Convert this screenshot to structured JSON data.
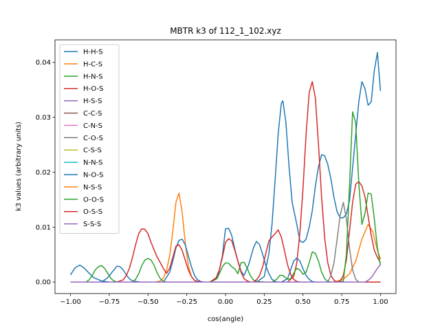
{
  "chart_data": {
    "type": "line",
    "title": "MBTR k3 of 112_1_102.xyz",
    "xlabel": "cos(angle)",
    "ylabel": "k3 values (arbitrary units)",
    "xlim": [
      -1.1,
      1.1
    ],
    "ylim": [
      -0.0021,
      0.0441
    ],
    "xticks": [
      -1.0,
      -0.75,
      -0.5,
      -0.25,
      0.0,
      0.25,
      0.5,
      0.75,
      1.0
    ],
    "xtick_labels": [
      "−1.00",
      "−0.75",
      "−0.50",
      "−0.25",
      "0.00",
      "0.25",
      "0.50",
      "0.75",
      "1.00"
    ],
    "yticks": [
      0.0,
      0.01,
      0.02,
      0.03,
      0.04
    ],
    "ytick_labels": [
      "0.00",
      "0.01",
      "0.02",
      "0.03",
      "0.04"
    ],
    "grid": false,
    "legend_position": "upper-left",
    "series": [
      {
        "name": "H-H-S",
        "color": "#1f77b4",
        "x": [
          -1.0,
          -0.97,
          -0.94,
          -0.91,
          -0.88,
          -0.85,
          -0.8,
          -0.75,
          -0.7,
          -0.65,
          -0.6,
          -0.55,
          -0.5,
          -0.45,
          -0.4,
          -0.35,
          -0.32,
          -0.3,
          -0.28,
          -0.26,
          -0.24,
          -0.22,
          -0.2,
          -0.18,
          -0.15,
          -0.1,
          -0.05,
          -0.02,
          0.0,
          0.02,
          0.04,
          0.06,
          0.08,
          0.1,
          0.12,
          0.15,
          0.18,
          0.2,
          0.25,
          0.28,
          0.3,
          0.32,
          0.34,
          0.36,
          0.37,
          0.39,
          0.41,
          0.43,
          0.46,
          0.48,
          0.5,
          0.52,
          0.54,
          0.56,
          0.58,
          0.6,
          0.62,
          0.64,
          0.66,
          0.68,
          0.7,
          0.72,
          0.74,
          0.76,
          0.78,
          0.8,
          0.82,
          0.84,
          0.86,
          0.88,
          0.9,
          0.92,
          0.94,
          0.96,
          0.98,
          1.0
        ],
        "y": [
          0.0013,
          0.0026,
          0.0031,
          0.0025,
          0.0016,
          0.0008,
          0.0002,
          0.0,
          0.0,
          0.0,
          0.0,
          0.0,
          0.0,
          0.0,
          0.0,
          0.0,
          0.0,
          0.0,
          0.0,
          0.0,
          0.0,
          0.0,
          0.0,
          0.0,
          0.0,
          0.0,
          0.0,
          0.0,
          0.0,
          0.0,
          0.0,
          0.0,
          0.0,
          0.0,
          0.0,
          0.0,
          0.0,
          0.0,
          0.001,
          0.0052,
          0.0105,
          0.0185,
          0.027,
          0.0325,
          0.033,
          0.029,
          0.021,
          0.0145,
          0.0105,
          0.0075,
          0.0072,
          0.0078,
          0.01,
          0.013,
          0.0175,
          0.021,
          0.0232,
          0.023,
          0.0214,
          0.0188,
          0.0154,
          0.0128,
          0.0117,
          0.0117,
          0.0124,
          0.0148,
          0.0208,
          0.0268,
          0.0328,
          0.0365,
          0.0352,
          0.0322,
          0.0328,
          0.0385,
          0.0418,
          0.0348
        ]
      },
      {
        "name": "H-C-S",
        "color": "#ff7f0e",
        "x": [
          -1.0,
          -0.45,
          -0.42,
          -0.4,
          -0.38,
          -0.36,
          -0.34,
          -0.32,
          -0.3,
          -0.28,
          -0.26,
          -0.24,
          -0.22,
          -0.2,
          -0.18,
          -0.15,
          0.6,
          0.7,
          0.76,
          0.8,
          0.84,
          0.88,
          0.92,
          0.95,
          0.98,
          1.0
        ],
        "y": [
          0.0,
          0.0,
          0.0002,
          0.0008,
          0.0022,
          0.0048,
          0.0092,
          0.0145,
          0.0162,
          0.0128,
          0.0072,
          0.003,
          0.001,
          0.0003,
          0.0,
          0.0,
          0.0,
          0.0,
          0.0005,
          0.0015,
          0.0038,
          0.0078,
          0.0105,
          0.0092,
          0.0058,
          0.0042
        ]
      },
      {
        "name": "H-N-S",
        "color": "#2ca02c",
        "x": [
          -1.0,
          -0.9,
          -0.88,
          -0.86,
          -0.84,
          -0.82,
          -0.8,
          -0.78,
          -0.76,
          -0.74,
          -0.72,
          -0.7,
          -0.65,
          -0.62,
          -0.6,
          -0.58,
          -0.56,
          -0.54,
          -0.52,
          -0.5,
          -0.48,
          -0.46,
          -0.44,
          -0.42,
          -0.4,
          -0.38,
          -0.35,
          -0.1,
          -0.08,
          -0.06,
          -0.04,
          -0.02,
          0.0,
          0.02,
          0.04,
          0.06,
          0.08,
          0.1,
          0.12,
          0.15,
          0.2,
          0.25,
          0.3,
          0.33,
          0.35,
          0.37,
          0.4,
          0.43,
          0.46,
          0.48,
          0.5,
          0.52,
          0.54,
          0.56,
          0.58,
          0.6,
          0.62,
          0.64,
          0.66,
          0.68,
          0.7,
          0.72,
          0.74,
          0.76,
          0.78,
          0.8,
          0.82,
          0.84,
          0.86,
          0.88,
          0.9,
          0.92,
          0.94,
          0.96,
          0.98,
          1.0
        ],
        "y": [
          0.0,
          0.0,
          0.0004,
          0.0012,
          0.0022,
          0.0028,
          0.003,
          0.0025,
          0.0016,
          0.0007,
          0.0002,
          0.0,
          0.0,
          0.0,
          0.0,
          0.0,
          0.0,
          0.0,
          0.0,
          0.0,
          0.0,
          0.0,
          0.0,
          0.0,
          0.0,
          0.0,
          0.0,
          0.0,
          0.0,
          0.0,
          0.0,
          0.0,
          0.0,
          0.0,
          0.0,
          0.0,
          0.0,
          0.0,
          0.0,
          0.0,
          0.0,
          0.0,
          0.0,
          0.0,
          0.0,
          0.0,
          0.0,
          0.0,
          0.0,
          0.0,
          0.0,
          0.0,
          0.0,
          0.0,
          0.0,
          0.0,
          0.0,
          0.0,
          0.0,
          0.0,
          0.0,
          0.0,
          0.0,
          0.0,
          0.0,
          0.0,
          0.0,
          0.0,
          0.0,
          0.0,
          0.0,
          0.0,
          0.0,
          0.0,
          0.0,
          0.0
        ]
      },
      {
        "name": "H-O-S",
        "color": "#d62728",
        "x": [
          -1.0,
          0.4,
          0.44,
          0.46,
          0.48,
          0.5,
          0.52,
          0.54,
          0.56,
          0.58,
          0.6,
          0.62,
          0.64,
          0.66,
          0.68,
          0.7,
          0.72,
          0.74,
          0.76,
          0.78,
          0.8,
          0.82,
          0.84,
          0.86,
          0.88,
          0.9,
          0.92,
          0.94,
          0.96,
          0.98,
          1.0
        ],
        "y": [
          0.0,
          0.0,
          0.001,
          0.0035,
          0.009,
          0.017,
          0.027,
          0.0345,
          0.0365,
          0.0335,
          0.025,
          0.0155,
          0.008,
          0.0035,
          0.0012,
          0.0003,
          0.0,
          0.0002,
          0.0012,
          0.004,
          0.0092,
          0.0145,
          0.0178,
          0.0183,
          0.0175,
          0.0155,
          0.012,
          0.0085,
          0.0058,
          0.0045,
          0.0035
        ]
      },
      {
        "name": "H-S-S",
        "color": "#9467bd",
        "x": [
          -1.0,
          1.0
        ],
        "y": [
          0.0,
          0.0
        ]
      },
      {
        "name": "C-C-S",
        "color": "#8c564b",
        "x": [
          -1.0,
          1.0
        ],
        "y": [
          0.0,
          0.0
        ]
      },
      {
        "name": "C-N-S",
        "color": "#e377c2",
        "x": [
          -1.0,
          1.0
        ],
        "y": [
          0.0,
          0.0
        ]
      },
      {
        "name": "C-O-S",
        "color": "#7f7f7f",
        "x": [
          -1.0,
          0.66,
          0.68,
          0.7,
          0.72,
          0.74,
          0.76,
          0.78,
          0.8,
          0.82,
          0.84,
          0.86,
          1.0
        ],
        "y": [
          0.0,
          0.0,
          0.0012,
          0.0035,
          0.0078,
          0.0122,
          0.0145,
          0.0115,
          0.0062,
          0.0022,
          0.0005,
          0.0,
          0.0
        ]
      },
      {
        "name": "C-S-S",
        "color": "#bcbd22",
        "x": [
          -1.0,
          1.0
        ],
        "y": [
          0.0,
          0.0
        ]
      },
      {
        "name": "N-N-S",
        "color": "#17becf",
        "x": [
          -1.0,
          1.0
        ],
        "y": [
          0.0,
          0.0
        ]
      },
      {
        "name": "N-O-S",
        "color": "#1f77b4",
        "x": [
          -1.0,
          -0.8,
          -0.76,
          -0.72,
          -0.7,
          -0.68,
          -0.66,
          -0.64,
          -0.62,
          -0.6,
          -0.55,
          -0.4,
          -0.36,
          -0.34,
          -0.32,
          -0.3,
          -0.28,
          -0.26,
          -0.24,
          -0.22,
          -0.2,
          -0.18,
          -0.16,
          -0.14,
          -0.1,
          -0.05,
          -0.02,
          0.0,
          0.02,
          0.04,
          0.06,
          0.08,
          0.1,
          0.12,
          0.15,
          0.18,
          0.2,
          0.22,
          0.24,
          0.26,
          0.28,
          0.3,
          0.32,
          0.34,
          0.36,
          0.4,
          0.42,
          0.44,
          0.46,
          0.48,
          0.5,
          0.52,
          0.54,
          0.56,
          0.58,
          0.6,
          1.0
        ],
        "y": [
          0.0,
          0.0,
          0.0008,
          0.0022,
          0.0029,
          0.0028,
          0.0022,
          0.0013,
          0.0006,
          0.0002,
          0.0,
          0.0,
          0.0018,
          0.0038,
          0.0062,
          0.0076,
          0.0078,
          0.0068,
          0.0048,
          0.0028,
          0.0012,
          0.0004,
          0.0001,
          0.0,
          0.0,
          0.0008,
          0.0048,
          0.0097,
          0.0098,
          0.0085,
          0.006,
          0.0038,
          0.002,
          0.0012,
          0.0032,
          0.0062,
          0.0074,
          0.0068,
          0.005,
          0.003,
          0.0015,
          0.0005,
          0.0001,
          0.0,
          0.0,
          0.0006,
          0.0022,
          0.0038,
          0.0044,
          0.0038,
          0.0024,
          0.0012,
          0.0005,
          0.0001,
          0.0,
          0.0,
          0.0
        ]
      },
      {
        "name": "N-S-S",
        "color": "#ff7f0e",
        "x": [
          -1.0,
          1.0
        ],
        "y": [
          0.0,
          0.0
        ]
      },
      {
        "name": "O-O-S",
        "color": "#2ca02c",
        "x": [
          -1.0,
          -0.6,
          -0.58,
          -0.56,
          -0.54,
          -0.52,
          -0.5,
          -0.48,
          -0.46,
          -0.44,
          -0.42,
          -0.4,
          -0.38,
          -0.2,
          -0.1,
          -0.06,
          -0.04,
          -0.02,
          0.0,
          0.02,
          0.04,
          0.06,
          0.08,
          0.1,
          0.12,
          0.14,
          0.16,
          0.18,
          0.2,
          0.25,
          0.3,
          0.33,
          0.35,
          0.37,
          0.4,
          0.42,
          0.44,
          0.46,
          0.48,
          0.5,
          0.52,
          0.54,
          0.56,
          0.58,
          0.6,
          0.62,
          0.64,
          0.66,
          0.68,
          0.7,
          0.72,
          0.74,
          0.76,
          0.78,
          0.8,
          0.82,
          0.84,
          0.86,
          0.88,
          0.9,
          0.92,
          0.94,
          0.96,
          0.98,
          1.0
        ],
        "y": [
          0.0,
          0.0,
          0.0005,
          0.0015,
          0.003,
          0.004,
          0.0043,
          0.004,
          0.003,
          0.0016,
          0.0006,
          0.0001,
          0.0,
          0.0,
          0.0,
          0.0005,
          0.0015,
          0.0028,
          0.0035,
          0.0034,
          0.0028,
          0.0024,
          0.0015,
          0.0035,
          0.0036,
          0.0025,
          0.0012,
          0.0004,
          0.0001,
          0.0,
          0.0,
          0.0005,
          0.0012,
          0.0012,
          0.0005,
          0.0006,
          0.0016,
          0.0025,
          0.0022,
          0.0014,
          0.0018,
          0.0035,
          0.0055,
          0.0052,
          0.0038,
          0.0018,
          0.0006,
          0.0001,
          0.0,
          0.0,
          0.0,
          0.0,
          0.0002,
          0.005,
          0.0175,
          0.031,
          0.029,
          0.018,
          0.0105,
          0.0125,
          0.0162,
          0.016,
          0.0115,
          0.0062,
          0.003
        ]
      },
      {
        "name": "O-S-S",
        "color": "#d62728",
        "x": [
          -1.0,
          -0.7,
          -0.66,
          -0.64,
          -0.62,
          -0.6,
          -0.58,
          -0.56,
          -0.54,
          -0.52,
          -0.5,
          -0.48,
          -0.46,
          -0.44,
          -0.42,
          -0.4,
          -0.38,
          -0.36,
          -0.34,
          -0.32,
          -0.3,
          -0.28,
          -0.26,
          -0.24,
          -0.22,
          -0.2,
          -0.18,
          -0.14,
          -0.1,
          -0.06,
          -0.04,
          -0.02,
          0.0,
          0.02,
          0.04,
          0.06,
          0.08,
          0.1,
          0.12,
          0.14,
          0.16,
          0.18,
          0.2,
          0.22,
          0.24,
          0.26,
          0.28,
          0.3,
          0.32,
          0.34,
          0.36,
          0.38,
          0.4,
          0.42,
          0.44,
          0.46,
          0.48,
          0.5,
          0.52,
          0.54,
          0.56,
          0.58,
          0.6,
          0.62,
          0.64,
          0.66,
          0.68,
          0.7,
          0.72,
          0.74,
          0.76,
          0.78,
          0.8,
          0.82,
          1.0
        ],
        "y": [
          0.0,
          0.0,
          0.0004,
          0.0012,
          0.0025,
          0.0045,
          0.0068,
          0.0088,
          0.0097,
          0.0096,
          0.0088,
          0.0072,
          0.0058,
          0.0045,
          0.0035,
          0.0024,
          0.0016,
          0.0025,
          0.0045,
          0.0065,
          0.0068,
          0.0058,
          0.004,
          0.0022,
          0.001,
          0.0003,
          0.0001,
          0.0,
          0.0,
          0.0008,
          0.0022,
          0.0045,
          0.0072,
          0.0079,
          0.0075,
          0.0058,
          0.0038,
          0.0018,
          0.0006,
          0.0002,
          0.0,
          0.0,
          0.0004,
          0.0012,
          0.0028,
          0.0052,
          0.0075,
          0.0082,
          0.0088,
          0.0095,
          0.0082,
          0.0058,
          0.0032,
          0.0014,
          0.0005,
          0.0001,
          0.0,
          0.0,
          0.0,
          0.0,
          0.0,
          0.0,
          0.0,
          0.0,
          0.0,
          0.0,
          0.0,
          0.0,
          0.0,
          0.0,
          0.0,
          0.0,
          0.0,
          0.0,
          0.0
        ]
      },
      {
        "name": "S-S-S",
        "color": "#9467bd",
        "x": [
          -1.0,
          0.9,
          0.92,
          0.94,
          0.96,
          0.98,
          1.0
        ],
        "y": [
          0.0,
          0.0,
          0.0003,
          0.0008,
          0.0016,
          0.0025,
          0.0032
        ]
      }
    ]
  }
}
